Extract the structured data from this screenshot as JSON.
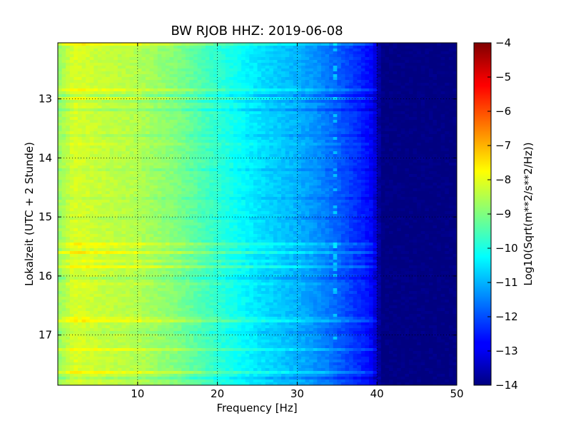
{
  "chart_data": {
    "type": "heatmap",
    "title": "BW RJOB HHZ: 2019-06-08",
    "xlabel": "Frequency [Hz]",
    "ylabel": "Lokalzeit (UTC + 2 Stunde)",
    "xlim": [
      0,
      50
    ],
    "ylim": [
      12.05,
      17.85
    ],
    "y_inverted": true,
    "x_ticks": [
      10,
      20,
      30,
      40,
      50
    ],
    "y_ticks": [
      13,
      14,
      15,
      16,
      17
    ],
    "grid": true,
    "colormap": "jet",
    "colorbar": {
      "label": "Log10(Sqrt(m**2/s**2/Hz))",
      "range": [
        -14,
        -4
      ],
      "ticks": [
        -4,
        -5,
        -6,
        -7,
        -8,
        -9,
        -10,
        -11,
        -12,
        -13,
        -14
      ]
    },
    "spectral_profile": {
      "frequency_hz": [
        0,
        1,
        2,
        5,
        10,
        15,
        20,
        25,
        30,
        33,
        35,
        38,
        39.5,
        40.5,
        50
      ],
      "log10_amplitude": [
        -8.8,
        -8.5,
        -8.1,
        -8.3,
        -8.5,
        -9.0,
        -9.8,
        -10.5,
        -11.0,
        -11.4,
        -11.8,
        -12.4,
        -12.8,
        -14.0,
        -14.0
      ]
    },
    "notable_features": [
      {
        "type": "narrowband line",
        "frequency_hz": 34.5
      },
      {
        "type": "low-frequency band",
        "frequency_range_hz": [
          1,
          3
        ]
      }
    ]
  }
}
